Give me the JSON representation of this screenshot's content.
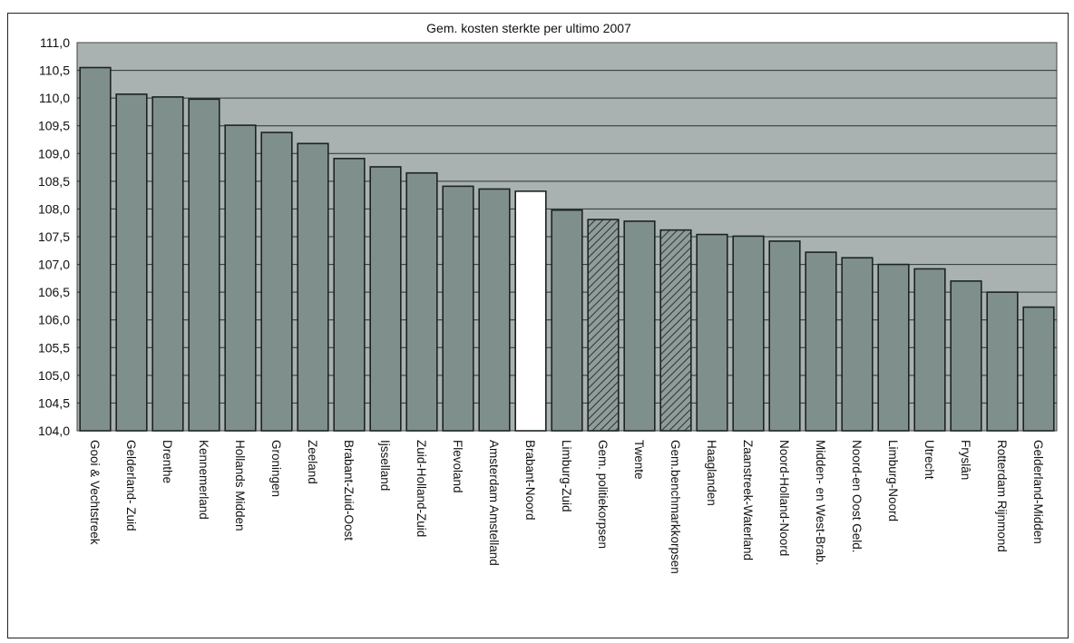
{
  "chart_data": {
    "type": "bar",
    "title": "Gem. kosten sterkte per ultimo 2007",
    "xlabel": "",
    "ylabel": "",
    "ylim": [
      104.0,
      111.0
    ],
    "ytick_step": 0.5,
    "grid": true,
    "legend": "none",
    "categories": [
      "Gooi & Vechtstreek",
      "Gelderland- Zuid",
      "Drenthe",
      "Kennemerland",
      "Hollands Midden",
      "Groningen",
      "Zeeland",
      "Brabant-Zuid-Oost",
      "Ijsselland",
      "Zuid-Holland-Zuid",
      "Flevoland",
      "Amsterdam Amstelland",
      "Brabant-Noord",
      "Limburg-Zuid",
      "Gem. politiekorpsen",
      "Twente",
      "Gem.benchmarkkorpsen",
      "Haaglanden",
      "Zaanstreek-Waterland",
      "Noord-Holland-Noord",
      "Midden- en West-Brab.",
      "Noord-en Oost Geld.",
      "Limburg-Noord",
      "Utrecht",
      "Fryslân",
      "Rotterdam Rijnmond",
      "Gelderland-Midden"
    ],
    "values": [
      110.55,
      110.07,
      110.02,
      109.98,
      109.51,
      109.38,
      109.18,
      108.91,
      108.76,
      108.65,
      108.41,
      108.36,
      108.32,
      107.98,
      107.81,
      107.78,
      107.62,
      107.54,
      107.51,
      107.42,
      107.22,
      107.12,
      107.0,
      106.92,
      106.7,
      106.5,
      106.23
    ],
    "bar_styles": [
      "solid",
      "solid",
      "solid",
      "solid",
      "solid",
      "solid",
      "solid",
      "solid",
      "solid",
      "solid",
      "solid",
      "solid",
      "highlight",
      "solid",
      "hatched",
      "solid",
      "hatched",
      "solid",
      "solid",
      "solid",
      "solid",
      "solid",
      "solid",
      "solid",
      "solid",
      "solid",
      "solid"
    ],
    "colors": {
      "plot_bg": "#a9b2b0",
      "bar_fill": "#7f8f8b",
      "bar_edge": "#1c2422",
      "highlight_fill": "#ffffff",
      "hatch_bg": "#8f9c99",
      "hatch_line": "#2a3331",
      "grid": "#2b3331"
    }
  }
}
